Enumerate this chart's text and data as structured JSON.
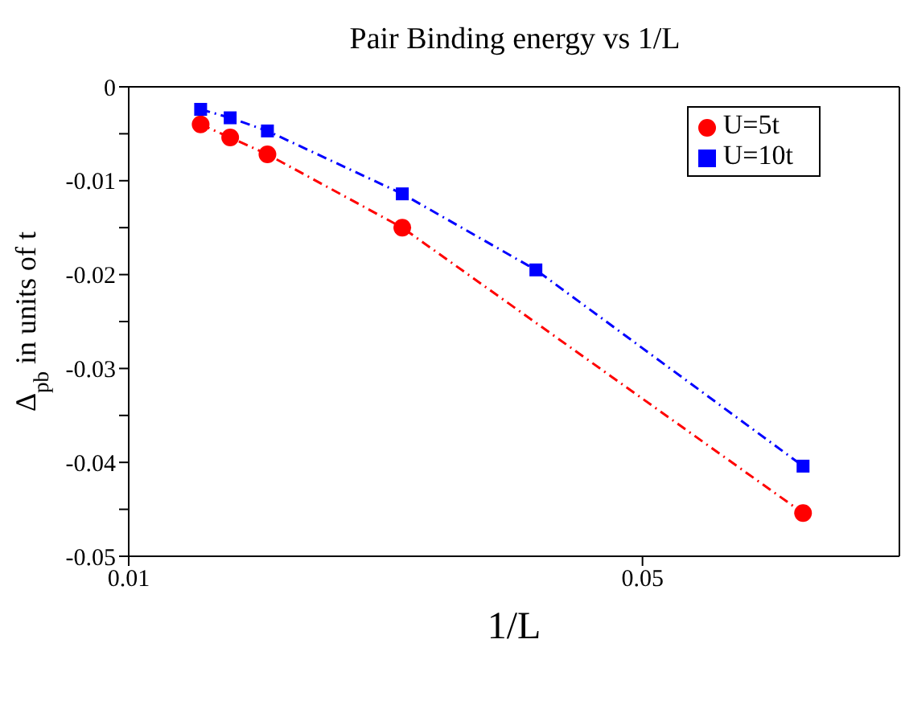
{
  "chart_data": {
    "type": "line",
    "title": "Pair Binding energy vs 1/L",
    "xlabel": "1/L",
    "ylabel": "Δ$_{pb}$ in units of t",
    "xlim": [
      0.01,
      0.07
    ],
    "xticks": [
      0.01,
      0.05
    ],
    "ylim": [
      -0.05,
      0
    ],
    "yticks": [
      -0.05,
      {
        "value": -0.045,
        "label": null
      },
      -0.04,
      {
        "value": -0.035,
        "label": null
      },
      -0.03,
      {
        "value": -0.025,
        "label": null
      },
      -0.02,
      {
        "value": -0.015,
        "label": null
      },
      -0.01,
      {
        "value": -0.005,
        "label": null
      },
      0
    ],
    "grid": false,
    "legend": "top right",
    "line_style": "dashed",
    "series": [
      {
        "name": "U=5t",
        "color": "#ff0000",
        "marker": "circle",
        "x": [
          0.0156,
          0.0179,
          0.0208,
          0.0313,
          0.0625
        ],
        "values": [
          -0.004,
          -0.0054,
          -0.0072,
          -0.015,
          -0.0454
        ]
      },
      {
        "name": "U=10t",
        "color": "#0000ff",
        "marker": "square",
        "x": [
          0.0156,
          0.0179,
          0.0208,
          0.0313,
          0.0417,
          0.0625
        ],
        "values": [
          -0.0024,
          -0.0033,
          -0.0047,
          -0.0114,
          -0.0195,
          -0.0404
        ]
      }
    ]
  }
}
